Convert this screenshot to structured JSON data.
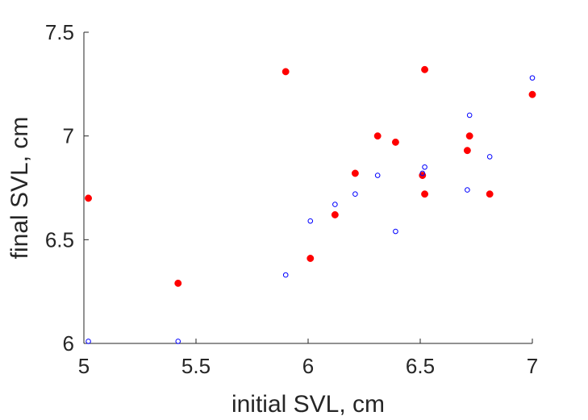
{
  "chart_data": {
    "type": "scatter",
    "title": "",
    "xlabel": "initial SVL, cm",
    "ylabel": "final SVL, cm",
    "xlim": [
      5,
      7
    ],
    "ylim": [
      6,
      7.5
    ],
    "xticks": [
      "5",
      "5.5",
      "6",
      "6.5",
      "7"
    ],
    "yticks": [
      "6",
      "6.5",
      "7",
      "7.5"
    ],
    "grid": false,
    "legend": "none",
    "series": [
      {
        "marker": "filled-circle",
        "color": "#ff0000",
        "points": [
          {
            "x": 5.02,
            "y": 6.7
          },
          {
            "x": 5.42,
            "y": 6.29
          },
          {
            "x": 5.9,
            "y": 7.31
          },
          {
            "x": 6.01,
            "y": 6.41
          },
          {
            "x": 6.12,
            "y": 6.62
          },
          {
            "x": 6.21,
            "y": 6.82
          },
          {
            "x": 6.31,
            "y": 7.0
          },
          {
            "x": 6.39,
            "y": 6.97
          },
          {
            "x": 6.51,
            "y": 6.81
          },
          {
            "x": 6.52,
            "y": 6.72
          },
          {
            "x": 6.52,
            "y": 7.32
          },
          {
            "x": 6.71,
            "y": 6.93
          },
          {
            "x": 6.72,
            "y": 7.0
          },
          {
            "x": 6.81,
            "y": 6.72
          },
          {
            "x": 7.0,
            "y": 7.2
          }
        ]
      },
      {
        "marker": "open-circle",
        "color": "#0000ff",
        "points": [
          {
            "x": 5.02,
            "y": 6.01
          },
          {
            "x": 5.42,
            "y": 6.01
          },
          {
            "x": 5.9,
            "y": 6.33
          },
          {
            "x": 6.01,
            "y": 6.59
          },
          {
            "x": 6.12,
            "y": 6.67
          },
          {
            "x": 6.21,
            "y": 6.72
          },
          {
            "x": 6.31,
            "y": 6.81
          },
          {
            "x": 6.39,
            "y": 6.54
          },
          {
            "x": 6.51,
            "y": 6.82
          },
          {
            "x": 6.52,
            "y": 6.85
          },
          {
            "x": 6.71,
            "y": 6.74
          },
          {
            "x": 6.72,
            "y": 7.1
          },
          {
            "x": 6.81,
            "y": 6.9
          },
          {
            "x": 7.0,
            "y": 7.28
          }
        ]
      }
    ]
  }
}
